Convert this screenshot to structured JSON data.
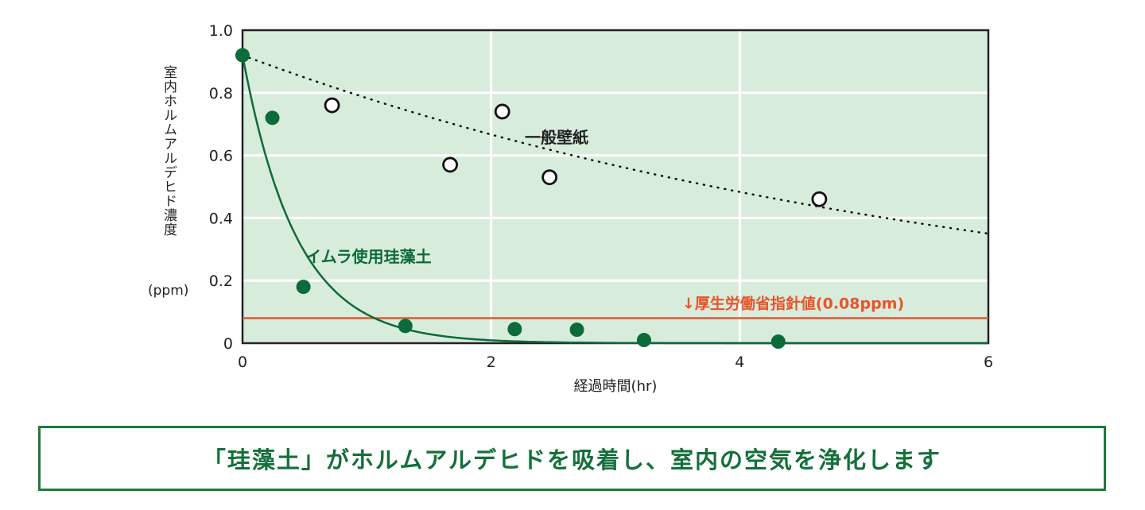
{
  "chart_data": {
    "type": "scatter",
    "title": "",
    "xlabel": "経過時間(hr)",
    "ylabel": "室内ホルムアルデヒド濃度",
    "yunit": "(ppm)",
    "xlim": [
      0,
      6
    ],
    "ylim": [
      0,
      1.0
    ],
    "xticks": [
      0,
      2,
      4,
      6
    ],
    "xtick_labels": [
      "0",
      "2",
      "4",
      "6"
    ],
    "yticks": [
      0,
      0.2,
      0.4,
      0.6,
      0.8,
      1.0
    ],
    "ytick_labels": [
      "0",
      "0.2",
      "0.4",
      "0.6",
      "0.8",
      "1.0"
    ],
    "grid": true,
    "series": [
      {
        "name": "イムラ使用珪藻土",
        "marker": "filled-circle",
        "color": "#0b6b3a",
        "x": [
          0,
          0.24,
          0.49,
          1.31,
          2.19,
          2.69,
          3.23,
          4.31
        ],
        "y": [
          0.92,
          0.72,
          0.18,
          0.055,
          0.045,
          0.043,
          0.01,
          0.005
        ],
        "fit": {
          "kind": "exponential",
          "a": 0.92,
          "k": 2.3
        }
      },
      {
        "name": "一般壁紙",
        "marker": "open-circle",
        "color": "#111111",
        "x": [
          0.72,
          1.67,
          2.09,
          2.47,
          4.64
        ],
        "y": [
          0.76,
          0.57,
          0.74,
          0.53,
          0.46
        ],
        "fit": {
          "kind": "exponential",
          "a": 0.92,
          "k": 0.161
        }
      }
    ],
    "reference_line": {
      "label": "↓厚生労働省指針値(0.08ppm)",
      "value": 0.08,
      "color": "#e8552a"
    },
    "colors": {
      "plot_bg": "#d8ecdc",
      "grid": "#ffffff"
    }
  },
  "caption": "「珪藻土」がホルムアルデヒドを吸着し、室内の空気を浄化します"
}
